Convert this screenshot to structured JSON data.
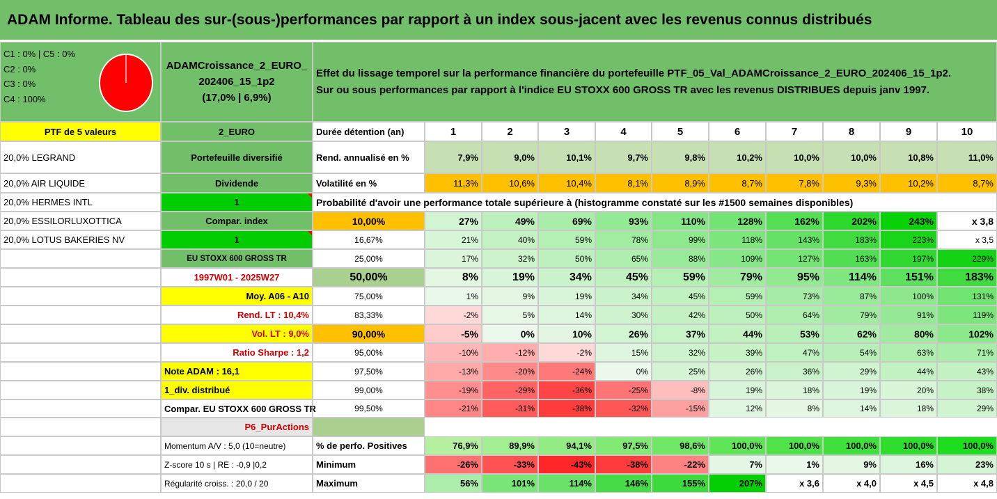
{
  "title": "ADAM Informe. Tableau des sur-(sous-)performances par rapport à un index sous-jacent avec les revenus connus distribués",
  "pie": {
    "legend": [
      "C1 : 0% | C5 : 0%",
      "C2 : 0%",
      "C3 : 0%",
      "C4 : 100%"
    ],
    "c4_share": 100,
    "color": "#ff0000"
  },
  "portfolio": {
    "name_line1": "ADAMCroissance_2_EURO_",
    "name_line2": "202406_15_1p2",
    "name_line3": "(17,0% | 6,9%)"
  },
  "description": {
    "line1": "Effet du lissage temporel sur la performance financière du portefeuille PTF_05_Val_ADAMCroissance_2_EURO_202406_15_1p2.",
    "line2": "Sur ou sous performances par rapport à l'indice EU STOXX 600 GROSS TR avec les revenus DISTRIBUES depuis janv 1997."
  },
  "left_col": {
    "header": "PTF de 5 valeurs",
    "holdings": [
      "20,0% LEGRAND",
      "20,0% AIR LIQUIDE",
      "20,0% HERMES INTL",
      "20,0% ESSILORLUXOTTICA",
      "20,0% LOTUS BAKERIES NV"
    ]
  },
  "mid_col": {
    "r0": "2_EURO",
    "r1": "Portefeuille diversifié",
    "r2": "Dividende",
    "r3": "1",
    "r4": "Compar. index",
    "r5": "1",
    "r6": "EU STOXX 600 GROSS TR",
    "r7": "1997W01 - 2025W27",
    "r8": "Moy. A06 - A10",
    "r9": "Rend. LT : 10,4%",
    "r10": "Vol. LT : 9,0%",
    "r11": "Ratio Sharpe : 1,2",
    "r12": "Note ADAM : 16,1",
    "r13": "1_div. distribué",
    "r14": "Compar. EU STOXX 600 GROSS TR",
    "r15": "P6_PurActions",
    "r16": "Momentum A/V : 5,0 (10=neutre)",
    "r17": "Z-score 10 s | RE : -0,9 |0,2",
    "r18": "Régularité croiss. : 20,0 / 20"
  },
  "table": {
    "duration_label": "Durée détention (an)",
    "years": [
      "1",
      "2",
      "3",
      "4",
      "5",
      "6",
      "7",
      "8",
      "9",
      "10"
    ],
    "rend_label": "Rend. annualisé en %",
    "rend": [
      "7,9%",
      "9,0%",
      "10,1%",
      "9,7%",
      "9,8%",
      "10,2%",
      "10,0%",
      "10,0%",
      "10,8%",
      "11,0%"
    ],
    "vol_label": "Volatilité en %",
    "vol": [
      "11,3%",
      "10,6%",
      "10,4%",
      "8,1%",
      "8,9%",
      "8,7%",
      "7,8%",
      "9,3%",
      "10,2%",
      "8,7%"
    ],
    "proba_label": "Probabilité d'avoir une performance totale supérieure à (histogramme constaté sur les #1500 semaines disponibles)",
    "quantiles": [
      {
        "p": "10,00%",
        "v": [
          "27%",
          "49%",
          "69%",
          "93%",
          "110%",
          "128%",
          "162%",
          "202%",
          "243%",
          "x 3,8"
        ]
      },
      {
        "p": "16,67%",
        "v": [
          "21%",
          "40%",
          "59%",
          "78%",
          "99%",
          "118%",
          "143%",
          "183%",
          "223%",
          "x 3,5"
        ]
      },
      {
        "p": "25,00%",
        "v": [
          "17%",
          "32%",
          "50%",
          "65%",
          "88%",
          "109%",
          "127%",
          "163%",
          "197%",
          "229%"
        ]
      },
      {
        "p": "50,00%",
        "v": [
          "8%",
          "19%",
          "34%",
          "45%",
          "59%",
          "79%",
          "95%",
          "114%",
          "151%",
          "183%"
        ]
      },
      {
        "p": "75,00%",
        "v": [
          "1%",
          "9%",
          "19%",
          "34%",
          "45%",
          "59%",
          "73%",
          "87%",
          "100%",
          "131%"
        ]
      },
      {
        "p": "83,33%",
        "v": [
          "-2%",
          "5%",
          "14%",
          "30%",
          "42%",
          "50%",
          "64%",
          "79%",
          "91%",
          "119%"
        ]
      },
      {
        "p": "90,00%",
        "v": [
          "-5%",
          "0%",
          "10%",
          "26%",
          "37%",
          "44%",
          "53%",
          "62%",
          "80%",
          "102%"
        ]
      },
      {
        "p": "95,00%",
        "v": [
          "-10%",
          "-12%",
          "-2%",
          "15%",
          "32%",
          "39%",
          "47%",
          "54%",
          "63%",
          "71%"
        ]
      },
      {
        "p": "97,50%",
        "v": [
          "-13%",
          "-20%",
          "-24%",
          "0%",
          "25%",
          "26%",
          "36%",
          "29%",
          "44%",
          "43%"
        ]
      },
      {
        "p": "99,00%",
        "v": [
          "-19%",
          "-29%",
          "-36%",
          "-25%",
          "-8%",
          "19%",
          "18%",
          "19%",
          "20%",
          "38%"
        ]
      },
      {
        "p": "99,50%",
        "v": [
          "-21%",
          "-31%",
          "-38%",
          "-32%",
          "-15%",
          "12%",
          "8%",
          "14%",
          "18%",
          "29%"
        ]
      }
    ],
    "pos_label": "% de perfo. Positives",
    "pos": [
      "76,9%",
      "89,9%",
      "94,1%",
      "97,5%",
      "98,6%",
      "100,0%",
      "100,0%",
      "100,0%",
      "100,0%",
      "100,0%"
    ],
    "min_label": "Minimum",
    "min": [
      "-26%",
      "-33%",
      "-43%",
      "-38%",
      "-22%",
      "7%",
      "1%",
      "9%",
      "16%",
      "23%"
    ],
    "max_label": "Maximum",
    "max": [
      "56%",
      "101%",
      "114%",
      "146%",
      "155%",
      "207%",
      "x 3,6",
      "x 4,0",
      "x 4,5",
      "x 4,8"
    ]
  },
  "colors": {
    "header_green": "#72bf6a",
    "highlight_yellow": "#ffff00",
    "bright_green": "#00cc00",
    "orange": "#ffc000",
    "text_red": "#d00000"
  }
}
